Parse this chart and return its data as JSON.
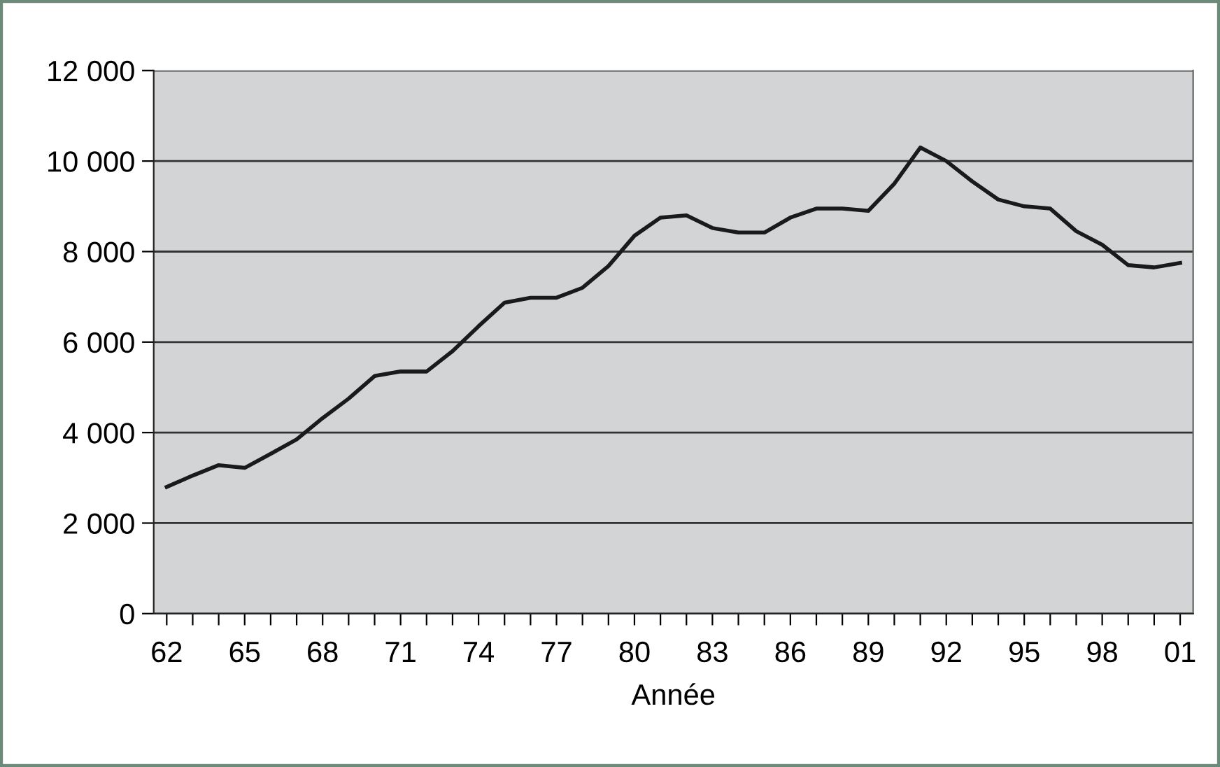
{
  "chart_data": {
    "type": "line",
    "xlabel": "Année",
    "categories": [
      "62",
      null,
      null,
      "65",
      null,
      null,
      "68",
      null,
      null,
      "71",
      null,
      null,
      "74",
      null,
      null,
      "77",
      null,
      null,
      "80",
      null,
      null,
      "83",
      null,
      null,
      "86",
      null,
      null,
      "89",
      null,
      null,
      "92",
      null,
      null,
      "95",
      null,
      null,
      "98",
      null,
      null,
      "01"
    ],
    "series": [
      {
        "color": "#1a1a1a",
        "values": [
          2800,
          3050,
          3280,
          3220,
          3530,
          3850,
          4320,
          4750,
          5250,
          5350,
          5350,
          5800,
          6350,
          6870,
          6980,
          6980,
          7200,
          7680,
          8350,
          8750,
          8800,
          8520,
          8420,
          8420,
          8750,
          8950,
          8950,
          8900,
          9500,
          10300,
          10000,
          9550,
          9150,
          9000,
          8950,
          8450,
          8150,
          7700,
          7650,
          7750
        ]
      }
    ],
    "ylim": [
      0,
      12000
    ],
    "yticks": [
      0,
      {
        "value": 2000,
        "label": "2 000"
      },
      {
        "value": 4000,
        "label": "4 000"
      },
      {
        "value": 6000,
        "label": "6 000"
      },
      {
        "value": 8000,
        "label": "8 000"
      },
      {
        "value": 10000,
        "label": "10 000"
      },
      {
        "value": 12000,
        "label": "12 000"
      }
    ],
    "grid": "y",
    "marker": "none",
    "line_style": "solid"
  }
}
